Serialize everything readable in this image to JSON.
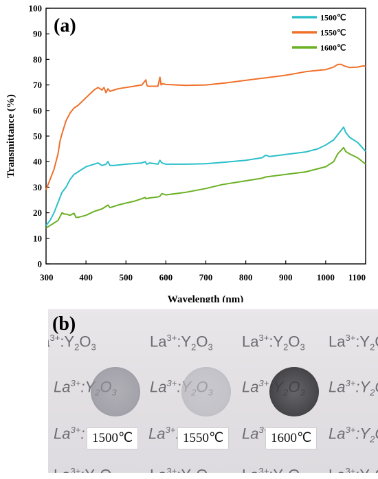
{
  "chart_data": {
    "type": "line",
    "panel_label": "(a)",
    "xlabel": "Wavelength (nm)",
    "ylabel": "Transmittance (%)",
    "xlim": [
      300,
      1100
    ],
    "ylim": [
      0,
      100
    ],
    "x_ticks": [
      300,
      400,
      500,
      600,
      700,
      800,
      900,
      1000,
      1100
    ],
    "y_ticks": [
      0,
      10,
      20,
      30,
      40,
      50,
      60,
      70,
      80,
      90,
      100
    ],
    "legend_position": "top-right",
    "series": [
      {
        "name": "1500℃",
        "color": "#2bbfca",
        "x": [
          300,
          310,
          320,
          330,
          340,
          350,
          360,
          370,
          380,
          400,
          420,
          430,
          440,
          450,
          455,
          460,
          470,
          500,
          540,
          548,
          552,
          560,
          580,
          585,
          590,
          600,
          650,
          700,
          750,
          800,
          840,
          850,
          860,
          900,
          950,
          980,
          1000,
          1020,
          1040,
          1045,
          1050,
          1060,
          1080,
          1100
        ],
        "y": [
          15,
          17,
          20,
          24,
          28,
          30,
          33,
          35,
          36,
          38,
          39,
          39.5,
          38.5,
          39,
          40,
          38.5,
          38.5,
          39,
          39.5,
          40,
          39,
          39.5,
          39,
          40.5,
          39.5,
          39,
          39,
          39.2,
          39.8,
          40.5,
          41.5,
          42.5,
          42,
          42.8,
          43.8,
          45,
          46.5,
          48.5,
          52.5,
          53.5,
          51.5,
          49.5,
          47.5,
          44
        ]
      },
      {
        "name": "1550℃",
        "color": "#f0702a",
        "x": [
          300,
          310,
          320,
          330,
          335,
          340,
          350,
          360,
          370,
          380,
          390,
          400,
          410,
          420,
          430,
          440,
          445,
          450,
          455,
          460,
          470,
          480,
          500,
          520,
          540,
          545,
          550,
          552,
          555,
          560,
          580,
          585,
          588,
          592,
          600,
          650,
          700,
          750,
          800,
          850,
          900,
          950,
          1000,
          1020,
          1030,
          1040,
          1045,
          1060,
          1080,
          1095,
          1100
        ],
        "y": [
          29,
          33,
          37,
          43,
          48,
          51,
          56,
          59,
          61,
          62,
          63.5,
          65,
          66.5,
          68,
          69,
          68,
          69,
          67,
          68.5,
          67.5,
          68,
          68.5,
          69,
          69.5,
          70,
          71,
          72,
          70,
          69.5,
          69.5,
          69.5,
          73,
          70,
          70.5,
          70.2,
          69.8,
          70,
          70.8,
          71.8,
          72.8,
          73.8,
          75.2,
          76,
          77,
          78,
          78,
          77.5,
          76.8,
          77,
          77.5,
          77.2
        ]
      },
      {
        "name": "1600℃",
        "color": "#6ab023",
        "x": [
          300,
          310,
          320,
          330,
          340,
          345,
          350,
          360,
          370,
          375,
          380,
          400,
          420,
          440,
          455,
          460,
          480,
          500,
          520,
          540,
          548,
          550,
          560,
          580,
          585,
          590,
          600,
          650,
          700,
          740,
          760,
          800,
          840,
          850,
          900,
          950,
          1000,
          1020,
          1030,
          1045,
          1050,
          1060,
          1080,
          1100
        ],
        "y": [
          14,
          15,
          16,
          17,
          20,
          19.5,
          19.5,
          19,
          19.8,
          18.2,
          18.2,
          19,
          20.5,
          21.5,
          23,
          22,
          23,
          23.8,
          24.5,
          25.5,
          26,
          25.5,
          25.8,
          26.2,
          26.5,
          27.5,
          27,
          28,
          29.5,
          31,
          31.5,
          32.5,
          33.5,
          34,
          35,
          36,
          38,
          40,
          43,
          45.5,
          44,
          43,
          41.5,
          39
        ]
      }
    ]
  },
  "photo": {
    "panel_label": "(b)",
    "text_line": "La3+:Y2O3",
    "print_rows": [
      [
        "La",
        "3+",
        ":Y",
        "2",
        "O",
        "3"
      ],
      [
        "La",
        "3+",
        ":Y",
        "2",
        "O",
        "3"
      ],
      [
        "La",
        "3+",
        ":Y",
        "2",
        "O",
        "3"
      ],
      [
        "La",
        "3+",
        ":Y",
        "2",
        "O",
        "3"
      ]
    ],
    "samples": [
      {
        "label": "1500℃",
        "tint": "#8f8f98",
        "edge": "#5f5f66"
      },
      {
        "label": "1550℃",
        "tint": "#b9b9bf",
        "edge": "#8a8a90"
      },
      {
        "label": "1600℃",
        "tint": "#3a3a3e",
        "edge": "#0e0e10"
      }
    ]
  }
}
